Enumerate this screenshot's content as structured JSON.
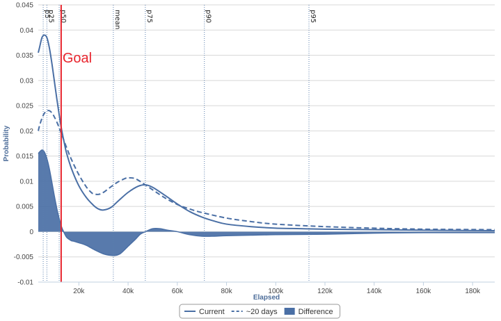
{
  "chart_data": {
    "type": "area",
    "title": "",
    "xlabel": "Elapsed",
    "ylabel": "Probability",
    "xlim": [
      3500,
      189000
    ],
    "ylim": [
      -0.01,
      0.045
    ],
    "x_ticks": [
      {
        "value": 20000,
        "label": "20k"
      },
      {
        "value": 40000,
        "label": "40k"
      },
      {
        "value": 60000,
        "label": "60k"
      },
      {
        "value": 80000,
        "label": "80k"
      },
      {
        "value": 100000,
        "label": "100k"
      },
      {
        "value": 120000,
        "label": "120k"
      },
      {
        "value": 140000,
        "label": "140k"
      },
      {
        "value": 160000,
        "label": "160k"
      },
      {
        "value": 180000,
        "label": "180k"
      }
    ],
    "y_ticks": [
      {
        "value": -0.01,
        "label": "-0.01"
      },
      {
        "value": -0.005,
        "label": "-0.005"
      },
      {
        "value": 0,
        "label": "0"
      },
      {
        "value": 0.005,
        "label": "0.005"
      },
      {
        "value": 0.01,
        "label": "0.01"
      },
      {
        "value": 0.015,
        "label": "0.015"
      },
      {
        "value": 0.02,
        "label": "0.02"
      },
      {
        "value": 0.025,
        "label": "0.025"
      },
      {
        "value": 0.03,
        "label": "0.03"
      },
      {
        "value": 0.035,
        "label": "0.035"
      },
      {
        "value": 0.04,
        "label": "0.04"
      },
      {
        "value": 0.045,
        "label": "0.045"
      }
    ],
    "grid": true,
    "legend_position": "bottom-center",
    "series": [
      {
        "name": "Current",
        "style": "solid",
        "color": "#4a6fa5",
        "x": [
          3500,
          4000,
          5000,
          6000,
          7000,
          8000,
          9000,
          10000,
          11000,
          12000,
          13000,
          14000,
          15000,
          17000,
          20000,
          23000,
          26000,
          28000,
          30000,
          33000,
          36000,
          40000,
          44000,
          47000,
          50000,
          55000,
          60000,
          65000,
          70000,
          75000,
          80000,
          90000,
          100000,
          110000,
          120000,
          140000,
          160000,
          189000
        ],
        "y": [
          0.0355,
          0.0365,
          0.0385,
          0.039,
          0.0385,
          0.0365,
          0.0335,
          0.03,
          0.0265,
          0.0232,
          0.0202,
          0.0178,
          0.0156,
          0.0125,
          0.0091,
          0.0068,
          0.0052,
          0.0045,
          0.0043,
          0.0048,
          0.0061,
          0.0078,
          0.009,
          0.0093,
          0.0088,
          0.0072,
          0.0055,
          0.004,
          0.0029,
          0.0021,
          0.0015,
          0.001,
          0.0007,
          0.0006,
          0.0005,
          0.0004,
          0.0003,
          0.0002
        ]
      },
      {
        "name": "~20 days",
        "style": "dashed",
        "color": "#4a6fa5",
        "x": [
          3500,
          4000,
          5000,
          6000,
          7000,
          8000,
          9000,
          10000,
          11000,
          12000,
          13000,
          14000,
          15000,
          17000,
          20000,
          23000,
          25000,
          26000,
          28000,
          30000,
          33000,
          36000,
          39000,
          40000,
          43000,
          47000,
          50000,
          55000,
          60000,
          65000,
          70000,
          80000,
          90000,
          100000,
          120000,
          140000,
          160000,
          189000
        ],
        "y": [
          0.02,
          0.021,
          0.0225,
          0.0235,
          0.024,
          0.024,
          0.0236,
          0.0228,
          0.0218,
          0.0206,
          0.0193,
          0.018,
          0.0167,
          0.0143,
          0.0113,
          0.0089,
          0.0078,
          0.0075,
          0.0074,
          0.0078,
          0.0089,
          0.0099,
          0.0106,
          0.0107,
          0.0105,
          0.0093,
          0.0083,
          0.0067,
          0.0054,
          0.0045,
          0.0038,
          0.0027,
          0.002,
          0.0015,
          0.001,
          0.0007,
          0.0005,
          0.0004
        ]
      },
      {
        "name": "Difference",
        "style": "area",
        "color": "#4a6fa5",
        "x": [
          3500,
          4000,
          5000,
          6000,
          7000,
          8000,
          9000,
          10000,
          11000,
          12000,
          13000,
          14000,
          15000,
          16000,
          17000,
          18000,
          20000,
          23000,
          26000,
          30000,
          33000,
          35000,
          37000,
          40000,
          43000,
          45000,
          47000,
          50000,
          53000,
          56000,
          60000,
          65000,
          70000,
          75000,
          80000,
          90000,
          100000,
          120000,
          140000,
          160000,
          189000
        ],
        "y": [
          0.0155,
          0.0158,
          0.0162,
          0.0158,
          0.0145,
          0.0125,
          0.0099,
          0.0072,
          0.0047,
          0.0026,
          0.0009,
          -0.0002,
          -0.0011,
          -0.0015,
          -0.0018,
          -0.0019,
          -0.0022,
          -0.0027,
          -0.0035,
          -0.0044,
          -0.0047,
          -0.0047,
          -0.0043,
          -0.0029,
          -0.0015,
          -0.0005,
          0.0,
          0.0006,
          0.0006,
          0.0003,
          0.0,
          -0.0006,
          -0.0009,
          -0.0009,
          -0.0008,
          -0.0007,
          -0.0006,
          -0.0005,
          -0.0003,
          -0.0002,
          -0.0002
        ]
      }
    ],
    "percentile_lines": [
      {
        "label": "p5",
        "value": 5500
      },
      {
        "label": "p25",
        "value": 7000
      },
      {
        "label": "p50",
        "value": 12000
      },
      {
        "label": "mean",
        "value": 34000
      },
      {
        "label": "p75",
        "value": 47000
      },
      {
        "label": "p90",
        "value": 71000
      },
      {
        "label": "p95",
        "value": 113500
      }
    ],
    "goal": {
      "label": "Goal",
      "value": 12800,
      "color": "#e8242d"
    }
  }
}
